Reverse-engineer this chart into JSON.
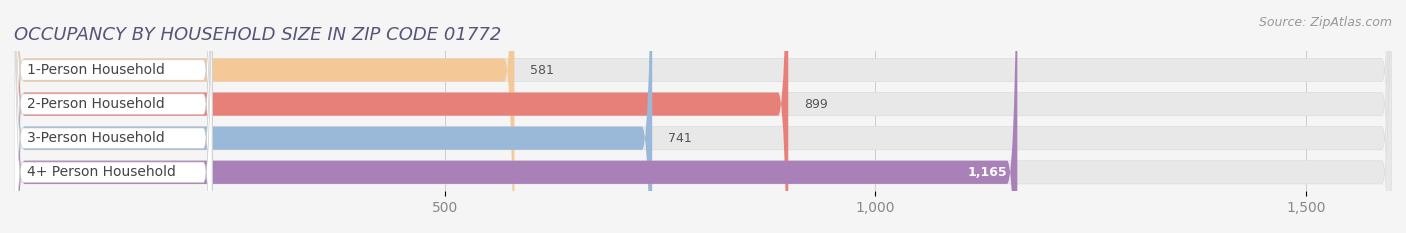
{
  "title": "OCCUPANCY BY HOUSEHOLD SIZE IN ZIP CODE 01772",
  "source": "Source: ZipAtlas.com",
  "categories": [
    "1-Person Household",
    "2-Person Household",
    "3-Person Household",
    "4+ Person Household"
  ],
  "values": [
    581,
    899,
    741,
    1165
  ],
  "bar_colors": [
    "#f5c897",
    "#e8807a",
    "#9ab8d8",
    "#a980b8"
  ],
  "xlim": [
    0,
    1600
  ],
  "xmax": 1600,
  "xticks": [
    500,
    1000,
    1500
  ],
  "xtick_labels": [
    "500",
    "1,000",
    "1,500"
  ],
  "background_color": "#f5f5f5",
  "bar_bg_color": "#e8e8e8",
  "title_fontsize": 13,
  "source_fontsize": 9,
  "label_fontsize": 10,
  "value_fontsize": 9
}
